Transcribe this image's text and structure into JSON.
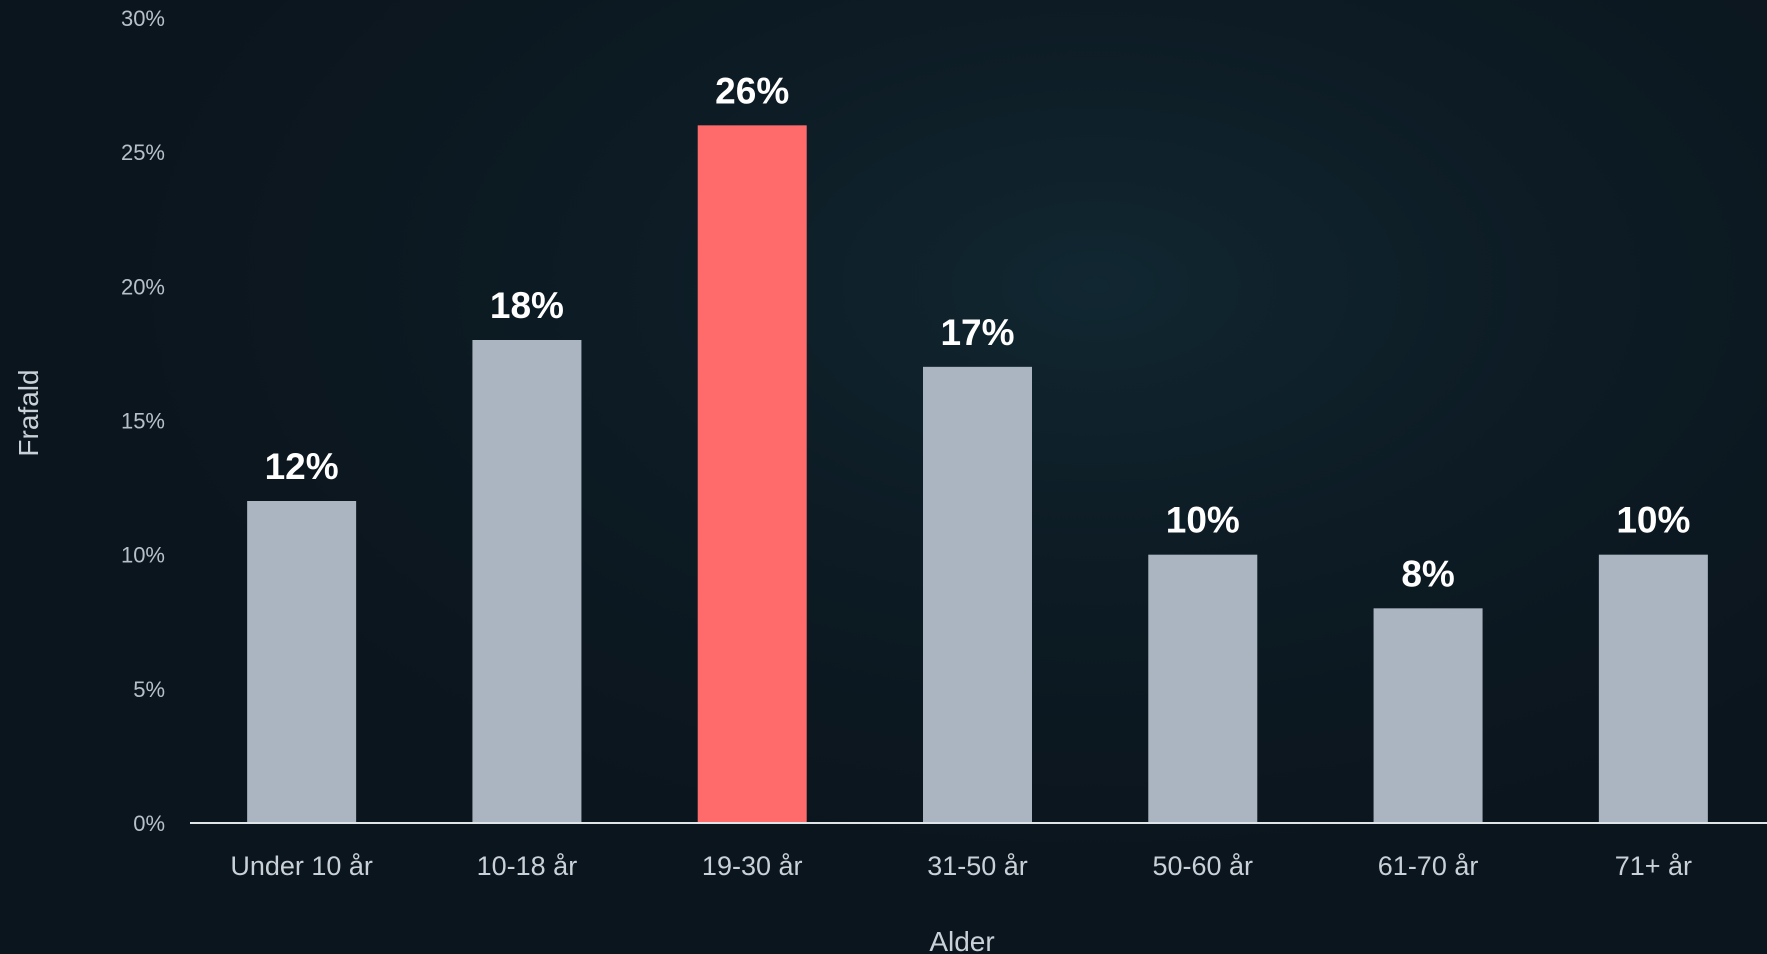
{
  "chart_data": {
    "type": "bar",
    "categories": [
      "Under 10 år",
      "10-18 år",
      "19-30 år",
      "31-50 år",
      "50-60 år",
      "61-70 år",
      "71+ år"
    ],
    "values": [
      12,
      18,
      26,
      17,
      10,
      8,
      10
    ],
    "value_labels": [
      "12%",
      "18%",
      "26%",
      "17%",
      "10%",
      "8%",
      "10%"
    ],
    "highlight_index": 2,
    "xlabel": "Alder",
    "ylabel": "Frafald",
    "ylim": [
      0,
      30
    ],
    "y_ticks": [
      0,
      5,
      10,
      15,
      20,
      25,
      30
    ],
    "y_tick_labels": [
      "0%",
      "5%",
      "10%",
      "15%",
      "20%",
      "25%",
      "30%"
    ],
    "grid": false,
    "colors": {
      "bar": "#abb5c1",
      "highlight": "#ff6b6b",
      "axis_line": "#dfe4e8"
    }
  }
}
